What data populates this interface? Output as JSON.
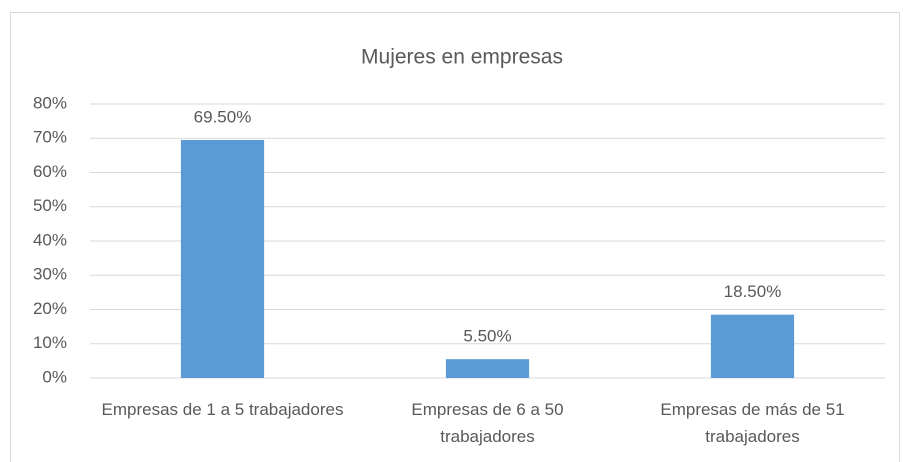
{
  "chart_data": {
    "type": "bar",
    "title": "Mujeres en empresas",
    "categories": [
      "Empresas de 1 a 5 trabajadores",
      "Empresas de 6 a 50 trabajadores",
      "Empresas de más de 51 trabajadores"
    ],
    "values": [
      69.5,
      5.5,
      18.5
    ],
    "value_labels": [
      "69.50%",
      "5.50%",
      "18.50%"
    ],
    "color": "#5b9bd5",
    "ylim": [
      0,
      80
    ],
    "yticks": [
      {
        "value": 0,
        "label": "0%"
      },
      {
        "value": 10,
        "label": "10%"
      },
      {
        "value": 20,
        "label": "20%"
      },
      {
        "value": 30,
        "label": "30%"
      },
      {
        "value": 40,
        "label": "40%"
      },
      {
        "value": 50,
        "label": "50%"
      },
      {
        "value": 60,
        "label": "60%"
      },
      {
        "value": 70,
        "label": "70%"
      },
      {
        "value": 80,
        "label": "80%"
      }
    ],
    "grid": true
  }
}
